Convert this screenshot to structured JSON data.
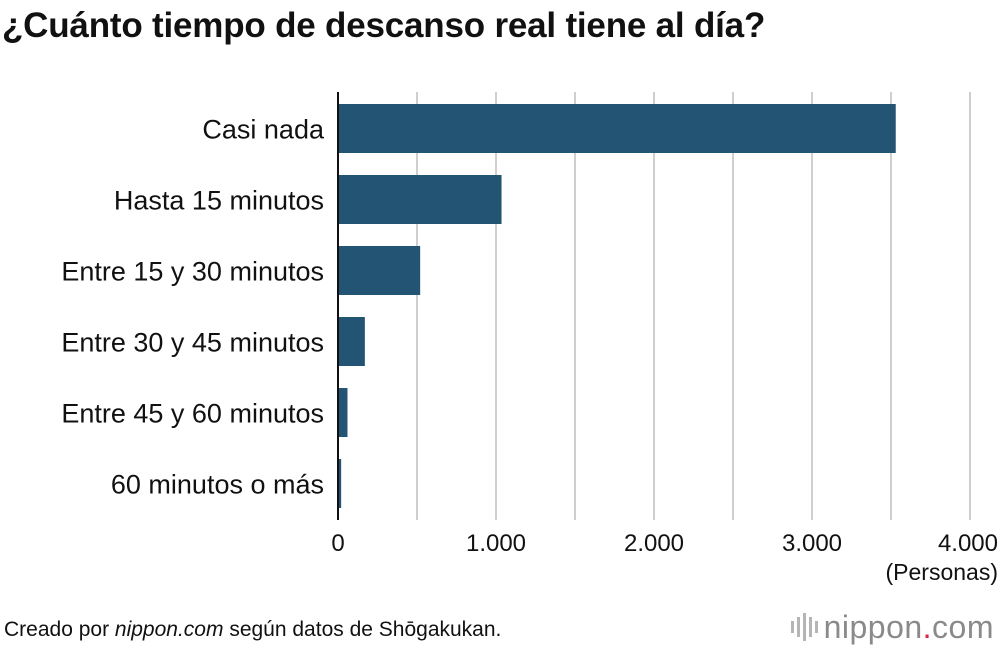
{
  "title": "¿Cuánto tiempo de descanso real tiene al día?",
  "footer": {
    "prefix": "Creado por ",
    "site": "nippon.com",
    "suffix": " según datos de Shōgakukan."
  },
  "logo": {
    "name": "nippon",
    "dot": ".",
    "tld": "com"
  },
  "colors": {
    "bar": "#235474",
    "grid": "#cfcfcf",
    "axis": "#111111"
  },
  "chart_data": {
    "type": "bar",
    "orientation": "horizontal",
    "categories": [
      "Casi nada",
      "Hasta 15 minutos",
      "Entre 15 y 30 minutos",
      "Entre 30 y 45 minutos",
      "Entre 45 y 60 minutos",
      "60 minutos o más"
    ],
    "values": [
      3530,
      1035,
      520,
      170,
      60,
      20
    ],
    "xlim": [
      0,
      4000
    ],
    "xticks": [
      0,
      1000,
      2000,
      3000,
      4000
    ],
    "xtick_labels": [
      "0",
      "1.000",
      "2.000",
      "3.000",
      "4.000"
    ],
    "unit_label": "(Personas)",
    "grid": true
  }
}
